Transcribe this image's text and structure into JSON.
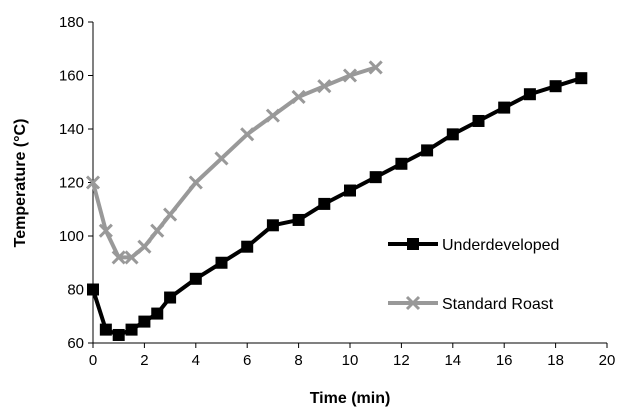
{
  "chart_data": {
    "type": "line",
    "title": "",
    "xlabel": "Time (min)",
    "ylabel": "Temperature (°C)",
    "xlim": [
      0,
      20
    ],
    "ylim": [
      60,
      180
    ],
    "x_ticks": [
      0,
      2,
      4,
      6,
      8,
      10,
      12,
      14,
      16,
      18,
      20
    ],
    "y_ticks": [
      60,
      80,
      100,
      120,
      140,
      160,
      180
    ],
    "grid": false,
    "legend_position": "right-middle",
    "series": [
      {
        "name": "Underdeveloped",
        "color": "#000000",
        "marker": "square",
        "x": [
          0,
          0.5,
          1,
          1.5,
          2,
          2.5,
          3,
          4,
          5,
          6,
          7,
          8,
          9,
          10,
          11,
          12,
          13,
          14,
          15,
          16,
          17,
          18,
          19
        ],
        "y": [
          80,
          65,
          63,
          65,
          68,
          71,
          77,
          84,
          90,
          96,
          104,
          106,
          112,
          117,
          122,
          127,
          132,
          138,
          143,
          148,
          153,
          156,
          159
        ]
      },
      {
        "name": "Standard Roast",
        "color": "#999999",
        "marker": "x",
        "x": [
          0,
          0.5,
          1,
          1.5,
          2,
          2.5,
          3,
          4,
          5,
          6,
          7,
          8,
          9,
          10,
          11
        ],
        "y": [
          120,
          102,
          92,
          92,
          96,
          102,
          108,
          120,
          129,
          138,
          145,
          152,
          156,
          160,
          163
        ]
      }
    ]
  }
}
